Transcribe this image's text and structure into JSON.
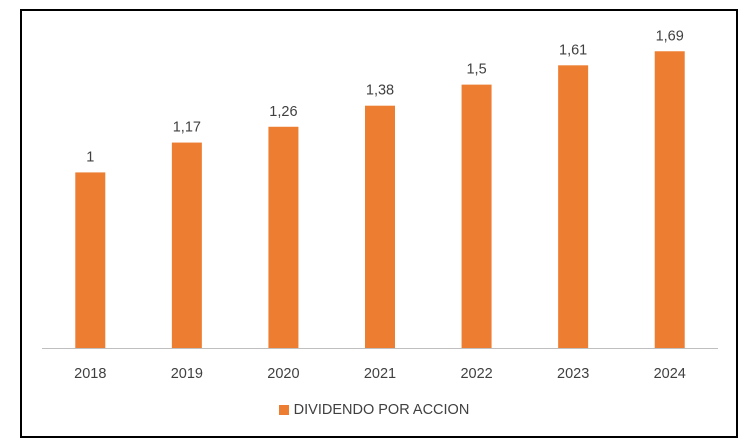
{
  "chart_data": {
    "type": "bar",
    "title": "",
    "xlabel": "",
    "ylabel": "",
    "categories": [
      "2018",
      "2019",
      "2020",
      "2021",
      "2022",
      "2023",
      "2024"
    ],
    "series": [
      {
        "name": "DIVIDENDO POR ACCION",
        "values": [
          1,
          1.17,
          1.26,
          1.38,
          1.5,
          1.61,
          1.69
        ],
        "data_labels": [
          "1",
          "1,17",
          "1,26",
          "1,38",
          "1,5",
          "1,61",
          "1,69"
        ],
        "color": "#ED7D31"
      }
    ],
    "ylim": [
      0,
      1.72
    ],
    "y_axis_visible": false,
    "grid": false,
    "legend_position": "bottom",
    "axis_line_color": "#BFBFBF",
    "text_color": "#404040"
  }
}
